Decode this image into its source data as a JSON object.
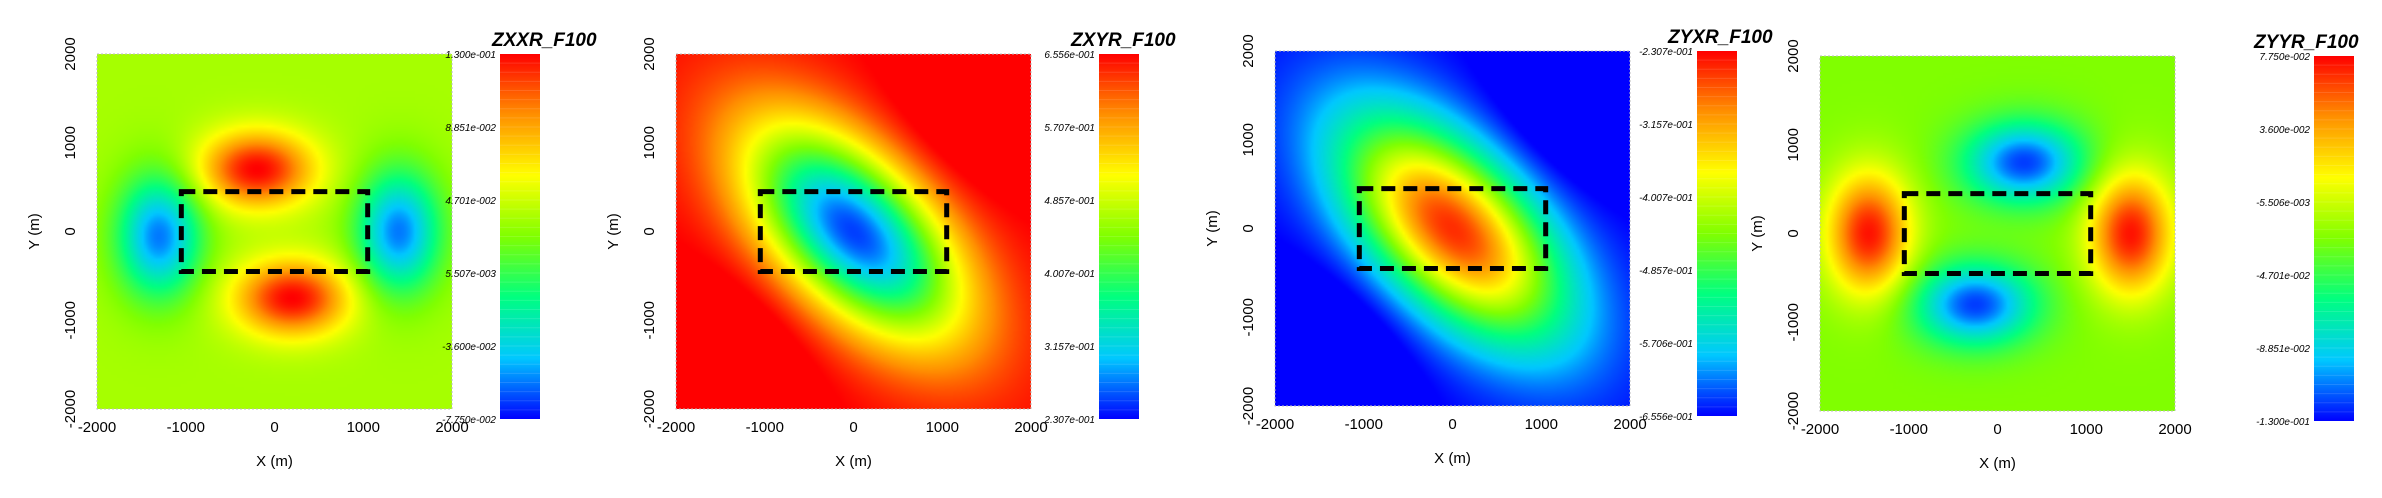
{
  "chart_data": [
    {
      "type": "heatmap",
      "title": "ZXXR_F100",
      "xlabel": "X (m)",
      "ylabel": "Y (m)",
      "xlim": [
        -2000,
        2000
      ],
      "ylim": [
        -2000,
        2000
      ],
      "xticks": [
        "-2000",
        "-1000",
        "0",
        "1000",
        "2000"
      ],
      "yticks": [
        "-2000",
        "-1000",
        "0",
        "1000",
        "2000"
      ],
      "colorbar_range": [
        -0.0775,
        0.13
      ],
      "colorbar_labels": [
        "1.300e-001",
        "8.851e-002",
        "4.701e-002",
        "5.507e-003",
        "-3.600e-002",
        "-7.750e-002"
      ],
      "pattern": "xx",
      "anomaly_box": {
        "x": [
          -1050,
          1050
        ],
        "y": [
          -450,
          450
        ]
      }
    },
    {
      "type": "heatmap",
      "title": "ZXYR_F100",
      "xlabel": "X (m)",
      "ylabel": "Y (m)",
      "xlim": [
        -2000,
        2000
      ],
      "ylim": [
        -2000,
        2000
      ],
      "xticks": [
        "-2000",
        "-1000",
        "0",
        "1000",
        "2000"
      ],
      "yticks": [
        "-2000",
        "-1000",
        "0",
        "1000",
        "2000"
      ],
      "colorbar_range": [
        0.2307,
        0.6556
      ],
      "colorbar_labels": [
        "6.556e-001",
        "5.707e-001",
        "4.857e-001",
        "4.007e-001",
        "3.157e-001",
        "2.307e-001"
      ],
      "pattern": "xy",
      "anomaly_box": {
        "x": [
          -1050,
          1050
        ],
        "y": [
          -450,
          450
        ]
      }
    },
    {
      "type": "heatmap",
      "title": "ZYXR_F100",
      "xlabel": "X (m)",
      "ylabel": "Y (m)",
      "xlim": [
        -2000,
        2000
      ],
      "ylim": [
        -2000,
        2000
      ],
      "xticks": [
        "-2000",
        "-1000",
        "0",
        "1000",
        "2000"
      ],
      "yticks": [
        "-2000",
        "-1000",
        "0",
        "1000",
        "2000"
      ],
      "colorbar_range": [
        -0.6556,
        -0.2307
      ],
      "colorbar_labels": [
        "-2.307e-001",
        "-3.157e-001",
        "-4.007e-001",
        "-4.857e-001",
        "-5.706e-001",
        "-6.556e-001"
      ],
      "pattern": "yx",
      "anomaly_box": {
        "x": [
          -1050,
          1050
        ],
        "y": [
          -450,
          450
        ]
      }
    },
    {
      "type": "heatmap",
      "title": "ZYYR_F100",
      "xlabel": "X (m)",
      "ylabel": "Y (m)",
      "xlim": [
        -2000,
        2000
      ],
      "ylim": [
        -2000,
        2000
      ],
      "xticks": [
        "-2000",
        "-1000",
        "0",
        "1000",
        "2000"
      ],
      "yticks": [
        "-2000",
        "-1000",
        "0",
        "1000",
        "2000"
      ],
      "colorbar_range": [
        -0.13,
        0.0775
      ],
      "colorbar_labels": [
        "7.750e-002",
        "3.600e-002",
        "-5.506e-003",
        "-4.701e-002",
        "-8.851e-002",
        "-1.300e-001"
      ],
      "pattern": "yy",
      "anomaly_box": {
        "x": [
          -1050,
          1050
        ],
        "y": [
          -450,
          450
        ]
      }
    }
  ],
  "colors": {
    "map_stops": [
      "#0000ff",
      "#00c8ff",
      "#00ff80",
      "#80ff00",
      "#ffff00",
      "#ff9000",
      "#ff0000"
    ],
    "box": "#000000",
    "text": "#000000"
  }
}
